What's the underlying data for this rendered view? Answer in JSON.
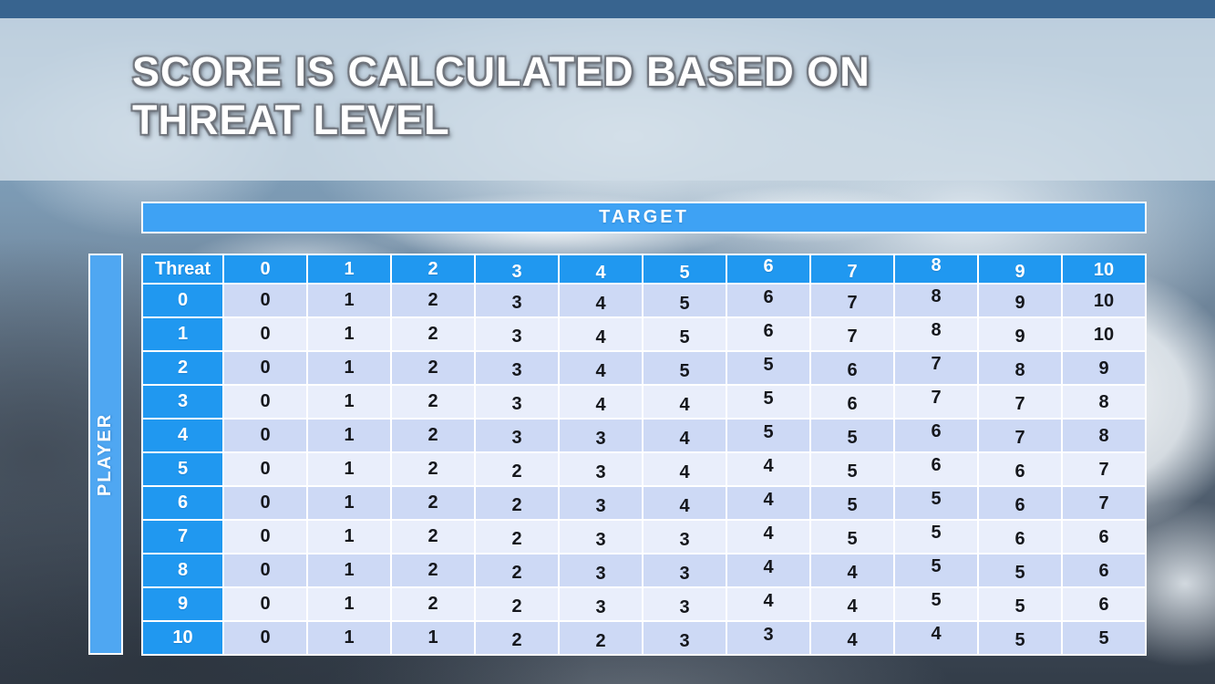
{
  "slide": {
    "title_line1": "SCORE IS CALCULATED BASED ON",
    "title_line2": "THREAT LEVEL"
  },
  "matrix": {
    "target_label": "TARGET",
    "player_label": "PLAYER",
    "corner_label": "Threat",
    "column_headers": [
      "0",
      "1",
      "2",
      "3",
      "4",
      "5",
      "6",
      "7",
      "8",
      "9",
      "10"
    ],
    "rows": [
      {
        "header": "0",
        "values": [
          0,
          1,
          2,
          3,
          4,
          5,
          6,
          7,
          8,
          9,
          10
        ]
      },
      {
        "header": "1",
        "values": [
          0,
          1,
          2,
          3,
          4,
          5,
          6,
          7,
          8,
          9,
          10
        ]
      },
      {
        "header": "2",
        "values": [
          0,
          1,
          2,
          3,
          4,
          5,
          5,
          6,
          7,
          8,
          9
        ]
      },
      {
        "header": "3",
        "values": [
          0,
          1,
          2,
          3,
          4,
          4,
          5,
          6,
          7,
          7,
          8
        ]
      },
      {
        "header": "4",
        "values": [
          0,
          1,
          2,
          3,
          3,
          4,
          5,
          5,
          6,
          7,
          8
        ]
      },
      {
        "header": "5",
        "values": [
          0,
          1,
          2,
          2,
          3,
          4,
          4,
          5,
          6,
          6,
          7
        ]
      },
      {
        "header": "6",
        "values": [
          0,
          1,
          2,
          2,
          3,
          4,
          4,
          5,
          5,
          6,
          7
        ]
      },
      {
        "header": "7",
        "values": [
          0,
          1,
          2,
          2,
          3,
          3,
          4,
          5,
          5,
          6,
          6
        ]
      },
      {
        "header": "8",
        "values": [
          0,
          1,
          2,
          2,
          3,
          3,
          4,
          4,
          5,
          5,
          6
        ]
      },
      {
        "header": "9",
        "values": [
          0,
          1,
          2,
          2,
          3,
          3,
          4,
          4,
          5,
          5,
          6
        ]
      },
      {
        "header": "10",
        "values": [
          0,
          1,
          1,
          2,
          2,
          3,
          3,
          4,
          4,
          5,
          5
        ]
      }
    ]
  },
  "colors": {
    "top_bar": "#38648f",
    "title_band": "#cfdce6",
    "title_text": "#ffffff",
    "header_blue": "#2098f0",
    "axis_bar_blue": "#4fa7f2",
    "target_bar_blue": "#3ea2f4",
    "row_stripe_dark": "#cdd9f5",
    "row_stripe_light": "#e9eefb",
    "cell_text": "#15171c"
  }
}
